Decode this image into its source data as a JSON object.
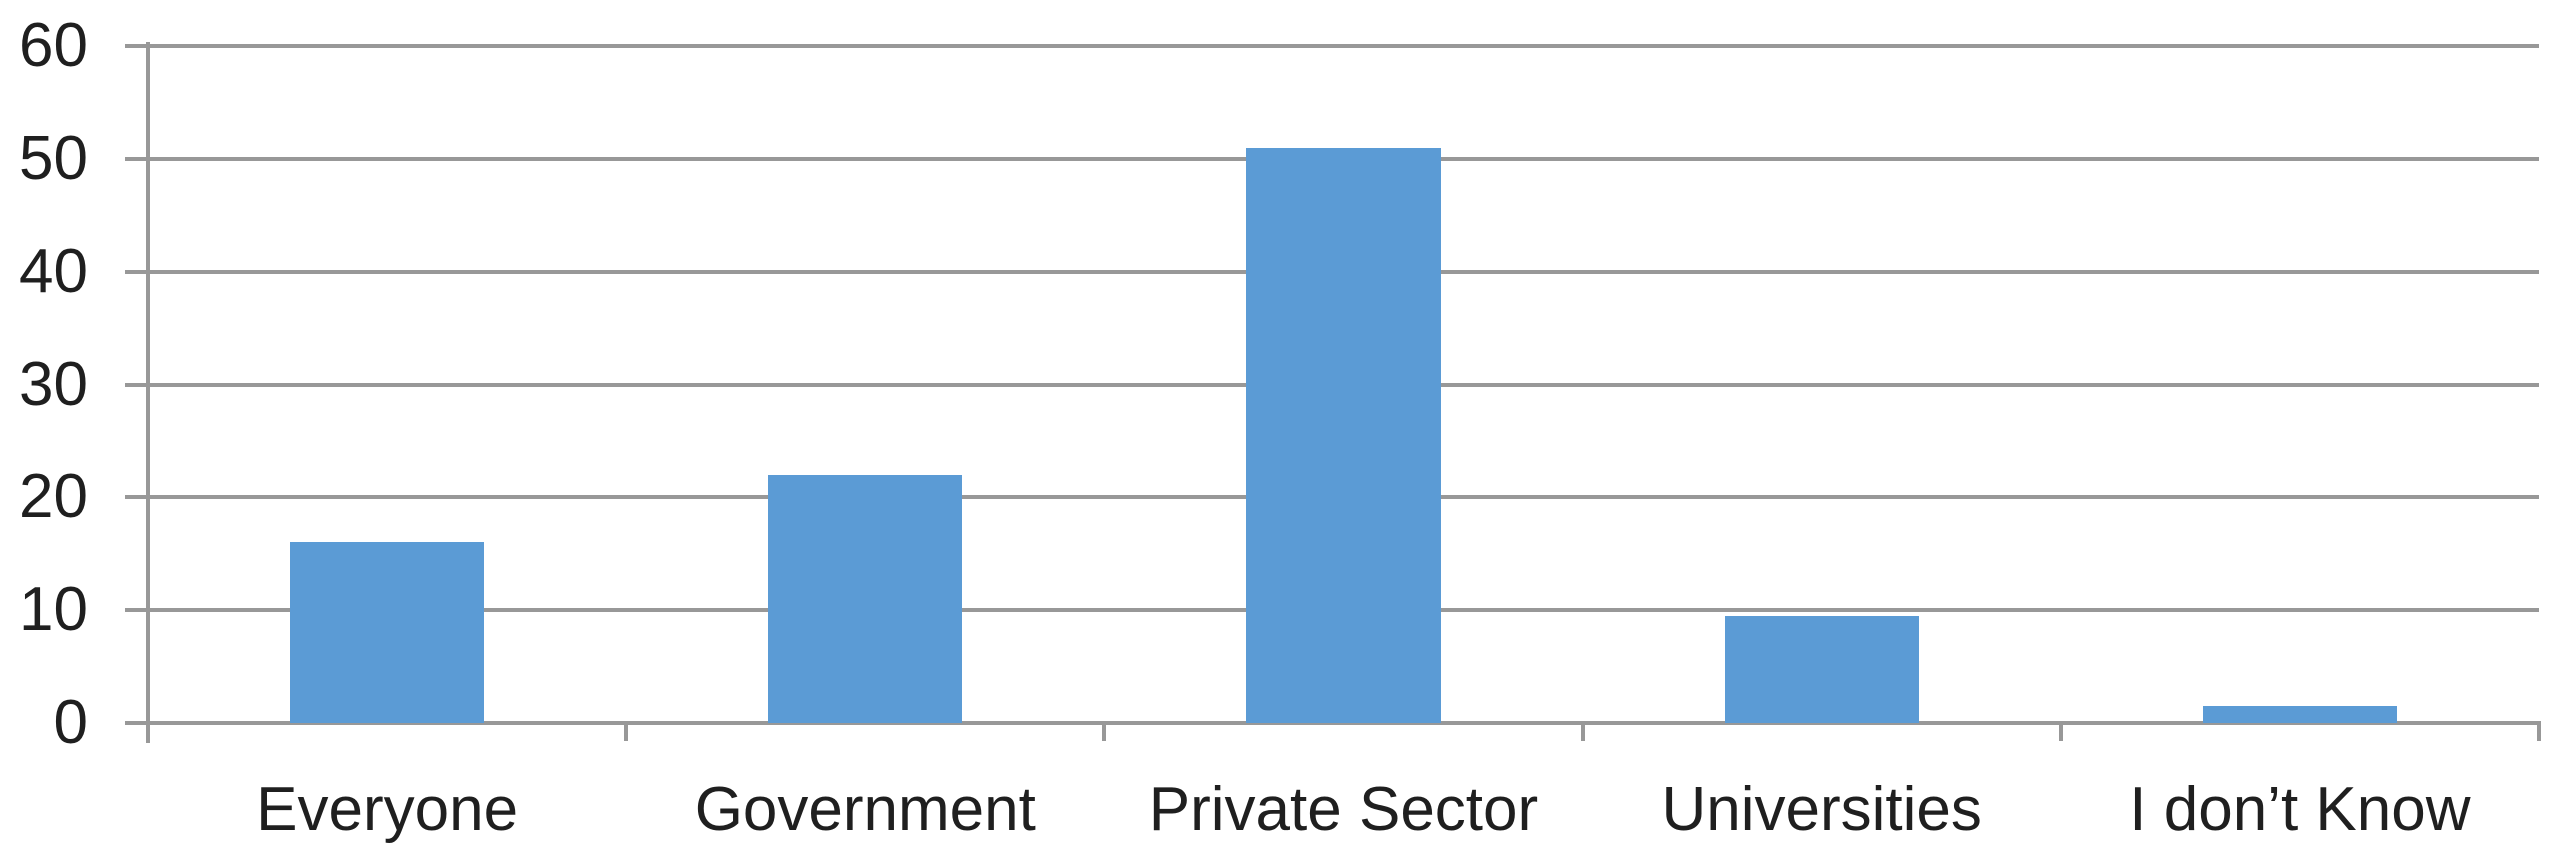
{
  "chart_data": {
    "type": "bar",
    "title": "",
    "xlabel": "",
    "ylabel": "",
    "categories": [
      "Everyone",
      "Government",
      "Private Sector",
      "Universities",
      "I don’t Know"
    ],
    "values": [
      16,
      22,
      51,
      9.5,
      1.5
    ],
    "ylim": [
      0,
      60
    ],
    "ytick_step": 10,
    "yticks": [
      0,
      10,
      20,
      30,
      40,
      50,
      60
    ],
    "grid": true,
    "legend": false,
    "legend_position": "none",
    "bar_color": "#5B9BD5",
    "gridline_color": "#989898",
    "axis_color": "#989898",
    "text_color": "#1f1f1f",
    "background_color": "#ffffff"
  }
}
